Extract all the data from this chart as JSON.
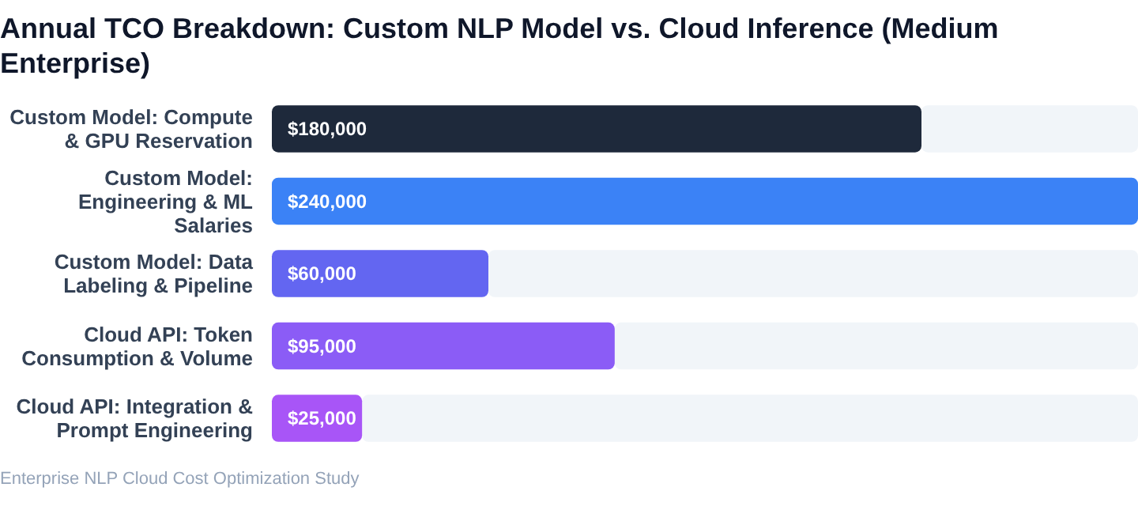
{
  "chart_data": {
    "type": "bar",
    "orientation": "horizontal",
    "title": "Annual TCO Breakdown: Custom NLP Model vs. Cloud Inference (Medium Enterprise)",
    "categories": [
      "Custom Model: Compute & GPU Reservation",
      "Custom Model: Engineering & ML Salaries",
      "Custom Model: Data Labeling & Pipeline",
      "Cloud API: Token Consumption & Volume",
      "Cloud API: Integration & Prompt Engineering"
    ],
    "values": [
      180000,
      240000,
      60000,
      95000,
      25000
    ],
    "colors": [
      "#1e293b",
      "#3b82f6",
      "#6366f1",
      "#8b5cf6",
      "#a855f7"
    ],
    "value_labels": [
      "$180,000",
      "$240,000",
      "$60,000",
      "$95,000",
      "$25,000"
    ],
    "annotations": [
      "Enterprise NLP Cloud Cost Optimization Study"
    ]
  }
}
